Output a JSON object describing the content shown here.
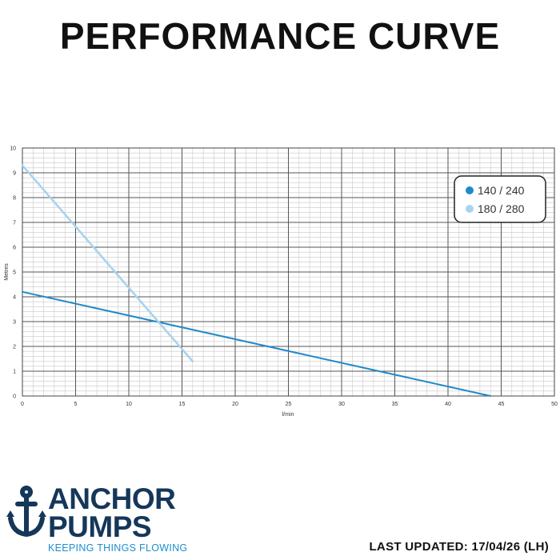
{
  "title": "PERFORMANCE CURVE",
  "chart_data": {
    "type": "line",
    "xlabel": "l/min",
    "ylabel": "Metres",
    "xlim": [
      0,
      50
    ],
    "ylim": [
      0,
      10
    ],
    "x_ticks": [
      0,
      5,
      10,
      15,
      20,
      25,
      30,
      35,
      40,
      45,
      50
    ],
    "y_ticks": [
      0,
      1,
      2,
      3,
      4,
      5,
      6,
      7,
      8,
      9,
      10
    ],
    "grid": true,
    "legend_position": "top-right",
    "series": [
      {
        "name": "140 / 240",
        "color": "#1f8ac9",
        "x": [
          0,
          44
        ],
        "y": [
          4.2,
          0
        ]
      },
      {
        "name": "180 / 280",
        "color": "#a9d3ef",
        "x": [
          0,
          16
        ],
        "y": [
          9.3,
          1.4
        ]
      }
    ]
  },
  "logo": {
    "name_line1": "ANCHOR",
    "name_line2": "PUMPS",
    "tagline": "KEEPING THINGS FLOWING",
    "icon": "anchor-icon",
    "brand_color": "#15375a",
    "accent_color": "#1e8ed0"
  },
  "last_updated": "LAST UPDATED: 17/04/26 (LH)"
}
